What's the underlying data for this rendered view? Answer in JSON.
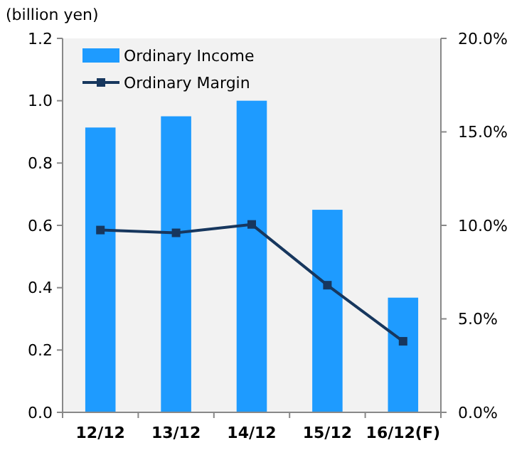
{
  "chart_data": {
    "type": "bar",
    "ylabel": "(billion yen)",
    "categories": [
      "12/12",
      "13/12",
      "14/12",
      "15/12",
      "16/12(F)"
    ],
    "series": [
      {
        "name": "Ordinary Income",
        "color": "#1e9bff",
        "values": [
          0.914,
          0.95,
          1.0,
          0.65,
          0.368
        ]
      },
      {
        "name": "Ordinary Margin",
        "type": "line",
        "axis": "y2",
        "color": "#17375e",
        "marker": "square",
        "values": [
          9.75,
          9.6,
          10.05,
          6.8,
          3.8
        ]
      }
    ],
    "ylim": [
      0,
      1.2
    ],
    "yticks": [
      {
        "value": 0,
        "label": "0.0"
      },
      0.2,
      0.4,
      0.6,
      0.8,
      {
        "value": 1,
        "label": "1.0"
      },
      1.2
    ],
    "y2lim": [
      0,
      20
    ],
    "y2ticks": [
      {
        "value": 0,
        "label": "0.0%"
      },
      {
        "value": 5,
        "label": "5.0%"
      },
      {
        "value": 10,
        "label": "10.0%"
      },
      {
        "value": 15,
        "label": "15.0%"
      },
      {
        "value": 20,
        "label": "20.0%"
      }
    ],
    "legend": "top left",
    "grid": false
  }
}
